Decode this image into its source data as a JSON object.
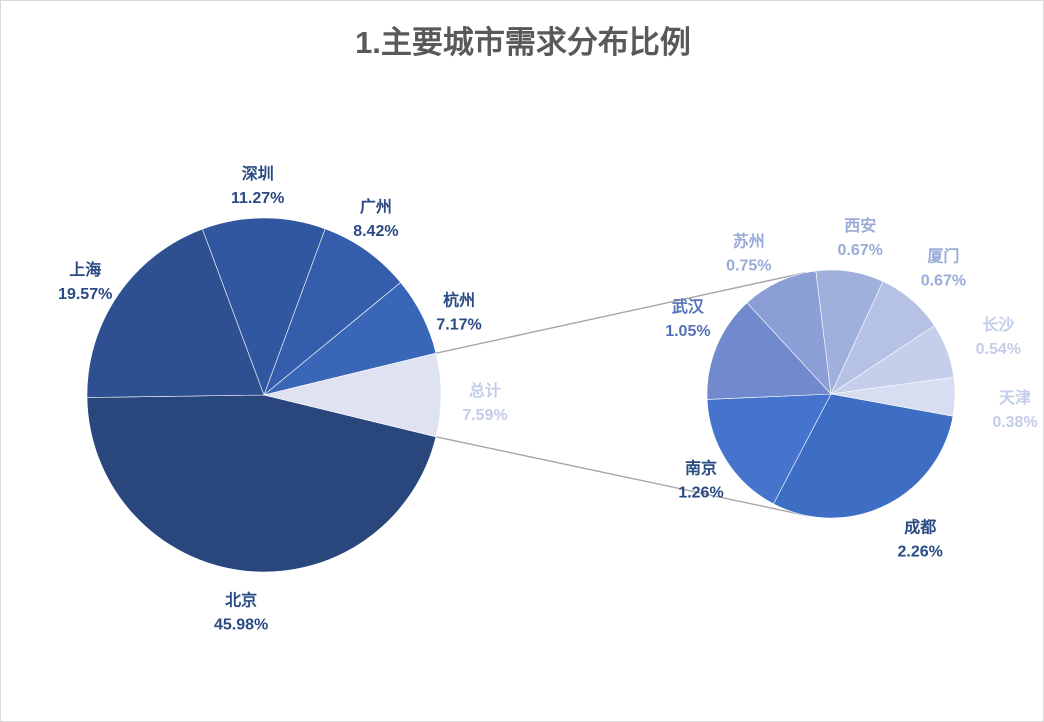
{
  "chart_data": {
    "type": "pie",
    "subtype": "pie-of-pie",
    "title": "1.主要城市需求分布比例",
    "main_pie": {
      "slices": [
        {
          "name": "北京",
          "value": 45.98,
          "label": "45.98%",
          "color": "#2a477d"
        },
        {
          "name": "上海",
          "value": 19.57,
          "label": "19.57%",
          "color": "#2e5091"
        },
        {
          "name": "深圳",
          "value": 11.27,
          "label": "11.27%",
          "color": "#3157a0"
        },
        {
          "name": "广州",
          "value": 8.42,
          "label": "8.42%",
          "color": "#345eab"
        },
        {
          "name": "杭州",
          "value": 7.17,
          "label": "7.17%",
          "color": "#3a66b8"
        },
        {
          "name": "总计",
          "value": 7.59,
          "label": "7.59%",
          "color": "#dfe3f1"
        }
      ]
    },
    "secondary_pie": {
      "slices": [
        {
          "name": "成都",
          "value": 2.26,
          "label": "2.26%",
          "color": "#3d6ec3"
        },
        {
          "name": "南京",
          "value": 1.26,
          "label": "1.26%",
          "color": "#4674cc"
        },
        {
          "name": "武汉",
          "value": 1.05,
          "label": "1.05%",
          "color": "#7189cd"
        },
        {
          "name": "苏州",
          "value": 0.75,
          "label": "0.75%",
          "color": "#8c9ed6"
        },
        {
          "name": "西安",
          "value": 0.67,
          "label": "0.67%",
          "color": "#9fb0dd"
        },
        {
          "name": "厦门",
          "value": 0.67,
          "label": "0.67%",
          "color": "#b5c2e5"
        },
        {
          "name": "长沙",
          "value": 0.54,
          "label": "0.54%",
          "color": "#c5cfeb"
        },
        {
          "name": "天津",
          "value": 0.38,
          "label": "0.38%",
          "color": "#d8def1"
        }
      ]
    },
    "label_colors": {
      "dark": "#2a4a82",
      "mid": "#5571b8",
      "light": "#9aabd8",
      "pale": "#c3cde9"
    },
    "connector_color": "#a6a6a6",
    "legend": "none"
  }
}
